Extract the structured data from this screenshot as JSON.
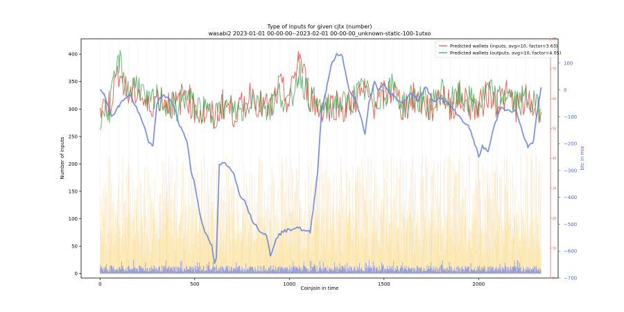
{
  "chart_data": {
    "type": "line",
    "title": "Type of inputs for given cjtx (number)",
    "subtitle": "wasabi2 2023-01-01 00-00-00--2023-02-01 00-00-00_unknown-static-100-1utxo",
    "xlabel": "Coinjoin in time",
    "ylabel": "Number of inputs",
    "y2label": "btc in mix",
    "xlim": [
      -100,
      2420
    ],
    "ylim": [
      -8,
      428
    ],
    "y2lim": [
      -700,
      190
    ],
    "y3lim": [
      0,
      80
    ],
    "x_ticks": [
      0,
      500,
      1000,
      1500,
      2000
    ],
    "y_ticks": [
      0,
      50,
      100,
      150,
      200,
      250,
      300,
      350,
      400
    ],
    "y2_ticks": [
      100,
      0,
      -100,
      -200,
      -300,
      -400,
      -500,
      -600,
      -700
    ],
    "y3_ticks": [
      0,
      10,
      20,
      30,
      40,
      50,
      60,
      70,
      80
    ],
    "legend_position": "top-right",
    "colors": {
      "inputs": "#e8473a",
      "outputs": "#3fa34d",
      "btc": "#6b86e0",
      "bg_orange": "#f6c16b",
      "bg_yellow": "#fde98a",
      "bg_blue": "#6f7fe8",
      "grid": "#dddddd"
    },
    "series": [
      {
        "name": "Predicted wallets (inputs, avg=10, factor=3.63)",
        "axis": "left",
        "x": [
          0,
          50,
          100,
          150,
          200,
          250,
          300,
          350,
          400,
          450,
          500,
          550,
          600,
          650,
          700,
          750,
          800,
          850,
          900,
          950,
          1000,
          1050,
          1100,
          1150,
          1200,
          1250,
          1300,
          1350,
          1400,
          1450,
          1500,
          1550,
          1600,
          1650,
          1700,
          1750,
          1800,
          1850,
          1900,
          1950,
          2000,
          2050,
          2100,
          2150,
          2200,
          2250,
          2300,
          2330
        ],
        "y": [
          300,
          310,
          370,
          320,
          335,
          300,
          325,
          315,
          305,
          330,
          300,
          290,
          285,
          310,
          295,
          300,
          330,
          305,
          300,
          340,
          310,
          400,
          330,
          300,
          305,
          310,
          300,
          320,
          330,
          310,
          325,
          335,
          300,
          320,
          310,
          300,
          330,
          305,
          320,
          310,
          300,
          330,
          310,
          325,
          305,
          315,
          300,
          295
        ]
      },
      {
        "name": "Predicted wallets (outputs, avg=10, factor=4.05)",
        "axis": "left",
        "x": [
          0,
          50,
          100,
          150,
          200,
          250,
          300,
          350,
          400,
          450,
          500,
          550,
          600,
          650,
          700,
          750,
          800,
          850,
          900,
          950,
          1000,
          1050,
          1100,
          1150,
          1200,
          1250,
          1300,
          1350,
          1400,
          1450,
          1500,
          1550,
          1600,
          1650,
          1700,
          1750,
          1800,
          1850,
          1900,
          1950,
          2000,
          2050,
          2100,
          2150,
          2200,
          2250,
          2300,
          2330
        ],
        "y": [
          290,
          300,
          390,
          330,
          350,
          305,
          320,
          310,
          300,
          325,
          305,
          295,
          290,
          305,
          300,
          295,
          320,
          310,
          305,
          330,
          305,
          370,
          325,
          305,
          300,
          315,
          305,
          325,
          335,
          315,
          330,
          340,
          305,
          325,
          315,
          305,
          335,
          310,
          325,
          315,
          305,
          335,
          315,
          330,
          310,
          320,
          305,
          300
        ]
      },
      {
        "name": "btc in mix",
        "axis": "right",
        "x": [
          0,
          20,
          40,
          60,
          80,
          100,
          130,
          160,
          200,
          240,
          260,
          280,
          300,
          330,
          360,
          390,
          420,
          440,
          460,
          480,
          500,
          530,
          560,
          590,
          605,
          615,
          630,
          660,
          700,
          740,
          770,
          800,
          840,
          880,
          900,
          930,
          960,
          1000,
          1040,
          1080,
          1110,
          1130,
          1150,
          1170,
          1200,
          1220,
          1250,
          1280,
          1300,
          1320,
          1350,
          1370,
          1400,
          1420,
          1450,
          1470,
          1500,
          1530,
          1560,
          1600,
          1640,
          1680,
          1720,
          1760,
          1800,
          1850,
          1900,
          1950,
          1980,
          2000,
          2020,
          2050,
          2080,
          2120,
          2160,
          2200,
          2240,
          2260,
          2290,
          2310,
          2330
        ],
        "y": [
          0,
          -10,
          -50,
          -100,
          -80,
          -60,
          -30,
          -20,
          -80,
          -150,
          -200,
          -210,
          -50,
          -20,
          -30,
          -60,
          -130,
          -160,
          -190,
          -300,
          -350,
          -470,
          -540,
          -580,
          -650,
          -620,
          -280,
          -270,
          -300,
          -390,
          -420,
          -480,
          -520,
          -540,
          -620,
          -550,
          -530,
          -520,
          -510,
          -525,
          -530,
          -420,
          -300,
          -80,
          20,
          90,
          130,
          130,
          50,
          -10,
          -40,
          -80,
          -170,
          -50,
          30,
          0,
          20,
          -10,
          -30,
          -50,
          -10,
          -40,
          10,
          -40,
          -30,
          -60,
          -100,
          -140,
          -200,
          -250,
          -210,
          -230,
          -140,
          -60,
          -80,
          -80,
          -180,
          -210,
          -190,
          -80,
          10
        ]
      }
    ],
    "background_series": [
      {
        "name": "",
        "axis": "left",
        "color": "orange",
        "values_approx_max": 220
      },
      {
        "name": "",
        "axis": "left",
        "color": "yellow",
        "values_approx_max": 160
      },
      {
        "name": "",
        "axis": "left",
        "color": "blue",
        "values_approx_max": 25
      }
    ]
  }
}
